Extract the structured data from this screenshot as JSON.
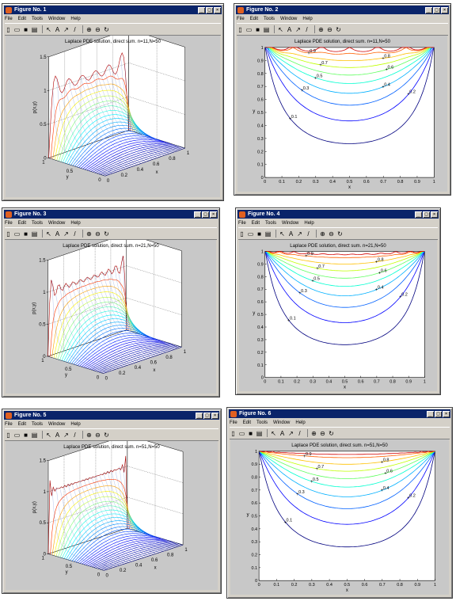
{
  "windows": [
    {
      "title": "Figure No. 1",
      "plot_title": "Laplace PDE solution, direct sum. n=11,N=50",
      "kind": "surface",
      "n": 11
    },
    {
      "title": "Figure No. 2",
      "plot_title": "Laplace PDE solution, direct sum. n=11,N=50",
      "kind": "contour",
      "n": 11
    },
    {
      "title": "Figure No. 3",
      "plot_title": "Laplace PDE solution, direct sum. n=21,N=50",
      "kind": "surface",
      "n": 21
    },
    {
      "title": "Figure No. 4",
      "plot_title": "Laplace PDE solution, direct sum. n=21,N=50",
      "kind": "contour",
      "n": 21
    },
    {
      "title": "Figure No. 5",
      "plot_title": "Laplace PDE solution, direct sum. n=51,N=50",
      "kind": "surface",
      "n": 51
    },
    {
      "title": "Figure No. 6",
      "plot_title": "Laplace PDE solution, direct sum. n=51,N=50",
      "kind": "contour",
      "n": 51
    }
  ],
  "menu": {
    "file": "File",
    "edit": "Edit",
    "tools": "Tools",
    "window": "Window",
    "help": "Help"
  },
  "window_buttons": {
    "minimize": "_",
    "maximize": "□",
    "close": "×"
  },
  "toolbar_icons": [
    "new-file-icon",
    "open-folder-icon",
    "save-icon",
    "print-icon",
    "arrow-select-icon",
    "text-A-icon",
    "arrow-icon",
    "line-icon",
    "zoom-in-icon",
    "zoom-out-icon",
    "rotate-icon"
  ],
  "surface_axes": {
    "zlabel": "p(x,y)",
    "xlabel": "x",
    "ylabel": "y",
    "zticks": [
      "0",
      "0.5",
      "1",
      "1.5"
    ],
    "xticks": [
      "0",
      "0.2",
      "0.4",
      "0.6",
      "0.8",
      "1"
    ],
    "yticks": [
      "0",
      "0.5",
      "1"
    ]
  },
  "contour_axes": {
    "xlabel": "x",
    "ylabel": "y",
    "ticks": [
      "0",
      "0.1",
      "0.2",
      "0.3",
      "0.4",
      "0.5",
      "0.6",
      "0.7",
      "0.8",
      "0.9",
      "1"
    ]
  },
  "contour_levels": [
    "0.1",
    "0.2",
    "0.3",
    "0.4",
    "0.5",
    "0.6",
    "0.7",
    "0.8",
    "0.9"
  ],
  "colors": {
    "titlebar": "#0a246a",
    "window_face": "#d4d0c8",
    "figure_background": "#c8c8c8",
    "axes_background": "#ffffff",
    "contour_colors": [
      "#00007f",
      "#0000ff",
      "#0060ff",
      "#00b0ff",
      "#00ffd0",
      "#60ff60",
      "#c0ff00",
      "#ffc000",
      "#ff6000",
      "#d00000"
    ]
  }
}
